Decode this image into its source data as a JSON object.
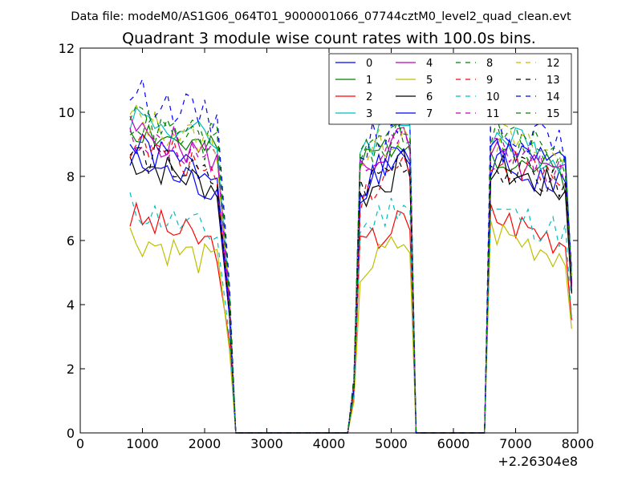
{
  "chart_data": {
    "type": "line",
    "suptitle": "Data file: modeM0/AS1G06_064T01_9000001066_07744cztM0_level2_quad_clean.evt",
    "title": "Quadrant 3 module wise count rates with 100.0s bins.",
    "xlabel": "",
    "ylabel": "",
    "xlim": [
      0,
      8000
    ],
    "ylim": [
      0,
      12
    ],
    "x_offset_label": "+2.26304e8",
    "xticks": [
      0,
      1000,
      2000,
      3000,
      4000,
      5000,
      6000,
      7000,
      8000
    ],
    "xtick_labels": [
      "0",
      "1000",
      "2000",
      "3000",
      "4000",
      "5000",
      "6000",
      "7000",
      "8000"
    ],
    "yticks": [
      0,
      2,
      4,
      6,
      8,
      10,
      12
    ],
    "ytick_labels": [
      "0",
      "2",
      "4",
      "6",
      "8",
      "10",
      "12"
    ],
    "legend_position": "top-right",
    "legend_columns": 4,
    "segments": [
      {
        "start": 800,
        "step": 100,
        "count": 15
      },
      {
        "start": 4500,
        "step": 100,
        "count": 8
      },
      {
        "start": 6600,
        "step": 100,
        "count": 13
      }
    ],
    "transitions": {
      "fall1": [
        2400,
        2500
      ],
      "zero1": [
        2500,
        4300
      ],
      "rise2": [
        4300,
        4400
      ],
      "fall2": [
        5300,
        5400
      ],
      "zero2": [
        5400,
        6500
      ],
      "rise3": [
        6500,
        6600
      ]
    },
    "series": [
      {
        "name": "0",
        "color": "#0000ff",
        "dash": "solid",
        "levels": [
          8.5,
          8.2,
          8.0
        ],
        "seed": 1
      },
      {
        "name": "1",
        "color": "#008000",
        "dash": "solid",
        "levels": [
          9.1,
          8.8,
          8.4
        ],
        "seed": 2
      },
      {
        "name": "2",
        "color": "#ff0000",
        "dash": "solid",
        "levels": [
          6.3,
          6.2,
          6.4
        ],
        "seed": 3
      },
      {
        "name": "3",
        "color": "#00bfbf",
        "dash": "solid",
        "levels": [
          9.5,
          9.4,
          8.9
        ],
        "seed": 4
      },
      {
        "name": "4",
        "color": "#bf00bf",
        "dash": "solid",
        "levels": [
          9.0,
          8.7,
          8.3
        ],
        "seed": 5
      },
      {
        "name": "5",
        "color": "#bfbf00",
        "dash": "solid",
        "levels": [
          5.7,
          5.5,
          5.9
        ],
        "seed": 6
      },
      {
        "name": "6",
        "color": "#000000",
        "dash": "solid",
        "levels": [
          8.1,
          7.8,
          7.9
        ],
        "seed": 7
      },
      {
        "name": "7",
        "color": "#0000ff",
        "dash": "solid",
        "levels": [
          8.0,
          8.3,
          8.6
        ],
        "seed": 8
      },
      {
        "name": "8",
        "color": "#008000",
        "dash": "dashed",
        "levels": [
          9.6,
          8.9,
          8.8
        ],
        "seed": 9
      },
      {
        "name": "9",
        "color": "#ff0000",
        "dash": "dashed",
        "levels": [
          8.6,
          7.9,
          8.2
        ],
        "seed": 10
      },
      {
        "name": "10",
        "color": "#00bfbf",
        "dash": "dashed",
        "levels": [
          6.6,
          6.8,
          6.6
        ],
        "seed": 11
      },
      {
        "name": "11",
        "color": "#bf00bf",
        "dash": "dashed",
        "levels": [
          8.8,
          8.6,
          8.5
        ],
        "seed": 12
      },
      {
        "name": "12",
        "color": "#bfbf00",
        "dash": "dashed",
        "levels": [
          9.4,
          9.0,
          8.9
        ],
        "seed": 13
      },
      {
        "name": "13",
        "color": "#000000",
        "dash": "dashed",
        "levels": [
          8.3,
          8.1,
          8.0
        ],
        "seed": 14
      },
      {
        "name": "14",
        "color": "#0000ff",
        "dash": "dashed",
        "levels": [
          10.2,
          9.4,
          9.3
        ],
        "seed": 15
      },
      {
        "name": "15",
        "color": "#008000",
        "dash": "dashed",
        "levels": [
          9.3,
          9.1,
          9.0
        ],
        "seed": 16
      }
    ]
  }
}
